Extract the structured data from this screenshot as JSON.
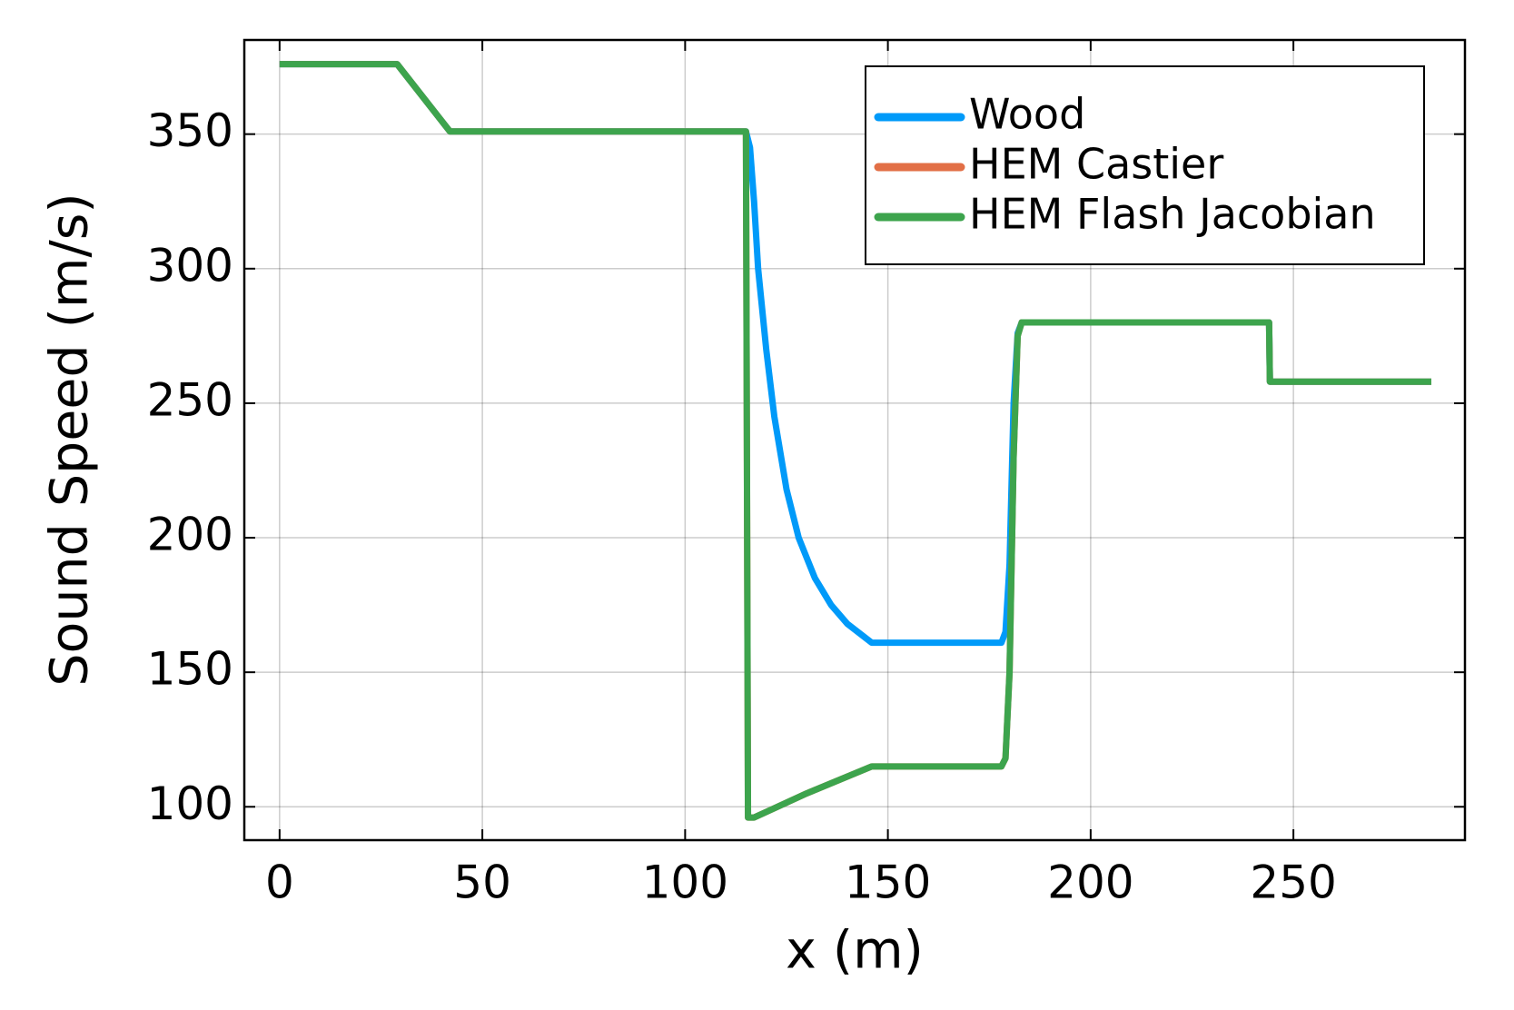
{
  "chart_data": {
    "type": "line",
    "xlabel": "x (m)",
    "ylabel": "Sound Speed (m/s)",
    "xlim": [
      -8.7,
      292.3
    ],
    "ylim": [
      87.6,
      385
    ],
    "xticks": [
      0,
      50,
      100,
      150,
      200,
      250
    ],
    "yticks": [
      100,
      150,
      200,
      250,
      300,
      350
    ],
    "grid": true,
    "legend": "top-right",
    "series": [
      {
        "name": "Wood",
        "color": "#009af9",
        "x": [
          0,
          29,
          42,
          115,
          116,
          117,
          118,
          120,
          122,
          125,
          128,
          132,
          136,
          140,
          146,
          178,
          179,
          180,
          181,
          182,
          183,
          244,
          244.2,
          284
        ],
        "values": [
          376,
          376,
          351,
          351,
          345,
          325,
          300,
          270,
          245,
          218,
          200,
          185,
          175,
          168,
          161,
          161,
          165,
          190,
          250,
          276,
          280,
          280,
          258,
          258
        ]
      },
      {
        "name": "HEM Castier",
        "color": "#e26f46",
        "x": [
          0,
          29,
          42,
          115,
          115.5,
          117,
          130,
          146,
          178,
          179,
          180,
          181,
          182,
          183,
          244,
          244.2,
          284
        ],
        "values": [
          376,
          376,
          351,
          351,
          96,
          96,
          105,
          115,
          115,
          118,
          150,
          230,
          275,
          280,
          280,
          258,
          258
        ]
      },
      {
        "name": "HEM Flash Jacobian",
        "color": "#3da44d",
        "x": [
          0,
          29,
          42,
          115,
          115.5,
          117,
          130,
          146,
          178,
          179,
          180,
          181,
          182,
          183,
          244,
          244.2,
          284
        ],
        "values": [
          376,
          376,
          351,
          351,
          96,
          96,
          105,
          115,
          115,
          118,
          150,
          230,
          275,
          280,
          280,
          258,
          258
        ]
      }
    ]
  }
}
